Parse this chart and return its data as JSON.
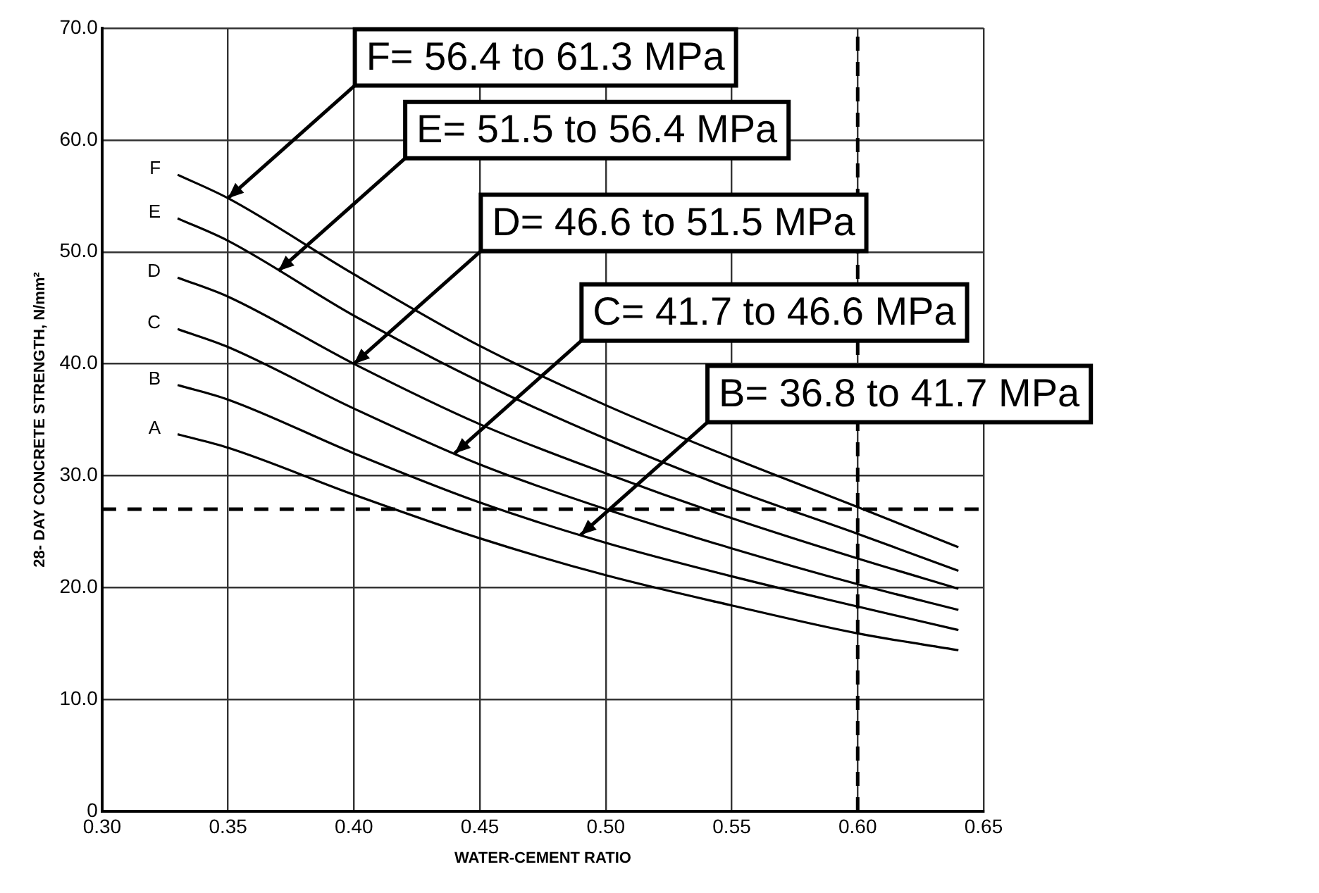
{
  "chart_data": {
    "type": "line",
    "xlabel": "WATER-CEMENT RATIO",
    "ylabel": "28- DAY CONCRETE STRENGTH, N/mm²",
    "x": [
      0.33,
      0.35,
      0.4,
      0.45,
      0.5,
      0.55,
      0.6,
      0.64
    ],
    "series": [
      {
        "name": "A",
        "color": "#000000",
        "values": [
          33.7,
          32.5,
          28.3,
          24.4,
          21.1,
          18.4,
          15.9,
          14.4
        ]
      },
      {
        "name": "B",
        "color": "#000000",
        "values": [
          38.1,
          36.8,
          32.0,
          27.6,
          24.0,
          21.0,
          18.3,
          16.2
        ]
      },
      {
        "name": "C",
        "color": "#000000",
        "values": [
          43.1,
          41.5,
          36.0,
          31.0,
          27.0,
          23.5,
          20.3,
          18.0
        ]
      },
      {
        "name": "D",
        "color": "#000000",
        "values": [
          47.7,
          46.0,
          40.0,
          34.6,
          30.2,
          26.2,
          22.6,
          19.9
        ]
      },
      {
        "name": "E",
        "color": "#000000",
        "values": [
          53.0,
          51.0,
          44.3,
          38.4,
          33.3,
          28.8,
          24.8,
          21.5
        ]
      },
      {
        "name": "F",
        "color": "#000000",
        "values": [
          56.9,
          54.8,
          48.0,
          41.6,
          36.3,
          31.6,
          27.2,
          23.6
        ]
      }
    ],
    "xlim": [
      0.3,
      0.65
    ],
    "xticks": [
      {
        "value": 0.3,
        "label": "0.30"
      },
      0.35,
      {
        "value": 0.4,
        "label": "0.40"
      },
      0.45,
      {
        "value": 0.5,
        "label": "0.50"
      },
      0.55,
      {
        "value": 0.6,
        "label": "0.60"
      },
      0.65
    ],
    "ylim": [
      0,
      70
    ],
    "yticks": [
      0,
      {
        "value": 10,
        "label": "10.0"
      },
      {
        "value": 20,
        "label": "20.0"
      },
      {
        "value": 30,
        "label": "30.0"
      },
      {
        "value": 40,
        "label": "40.0"
      },
      {
        "value": 50,
        "label": "50.0"
      },
      {
        "value": 60,
        "label": "60.0"
      },
      {
        "value": 70,
        "label": "70.0"
      }
    ],
    "grid": true,
    "legend": false,
    "marker": "none",
    "line_style": "solid",
    "ref_lines": [
      {
        "axis": "y",
        "value": 27,
        "color": "#000000",
        "line_style": "dashed"
      },
      {
        "axis": "x",
        "value": 0.6,
        "color": "#000000",
        "line_style": "dashed"
      }
    ],
    "annotations": [
      {
        "text": "F= 56.4 to 61.3 MPa",
        "x": 0.35,
        "y": 54.8
      },
      {
        "text": "E= 51.5 to 56.4 MPa",
        "x": 0.37,
        "y": 48.3
      },
      {
        "text": "D= 46.6 to 51.5 MPa",
        "x": 0.4,
        "y": 40.0
      },
      {
        "text": "C= 41.7 to 46.6 MPa",
        "x": 0.44,
        "y": 32.0
      },
      {
        "text": "B= 36.8 to 41.7 MPa",
        "x": 0.49,
        "y": 24.7
      }
    ]
  }
}
